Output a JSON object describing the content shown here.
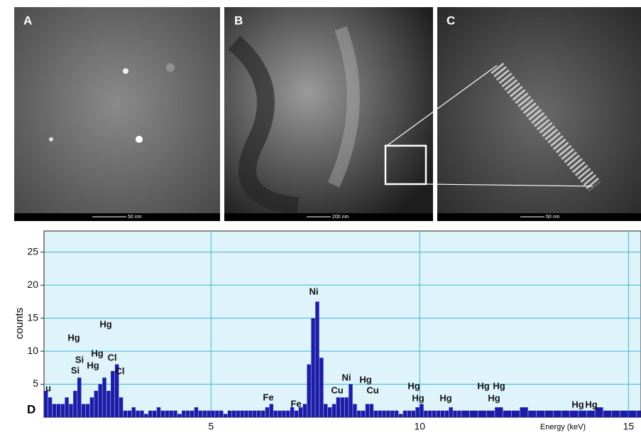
{
  "panels": [
    {
      "label": "A",
      "scale": "50 nm"
    },
    {
      "label": "B",
      "scale": "200 nm"
    },
    {
      "label": "C",
      "scale": "50 nm"
    }
  ],
  "chart_data": {
    "type": "bar",
    "label": "D",
    "ylabel": "counts",
    "xlabel": "Energy (keV)",
    "color": "#1c1ca8",
    "grid": true,
    "xlim": [
      1.0,
      15.3
    ],
    "ylim": [
      0,
      28.2
    ],
    "xticks": [
      5,
      10,
      15
    ],
    "yticks": [
      5,
      10,
      15,
      20,
      25
    ],
    "x": [
      1.0,
      1.1,
      1.2,
      1.3,
      1.4,
      1.5,
      1.6,
      1.7,
      1.8,
      1.9,
      2.0,
      2.1,
      2.2,
      2.3,
      2.4,
      2.5,
      2.6,
      2.7,
      2.8,
      2.9,
      3.0,
      3.1,
      3.2,
      3.3,
      3.4,
      3.5,
      3.6,
      3.7,
      3.8,
      3.9,
      4.0,
      4.1,
      4.2,
      4.3,
      4.4,
      4.5,
      4.6,
      4.7,
      4.8,
      4.9,
      5.0,
      5.1,
      5.2,
      5.3,
      5.4,
      5.5,
      5.6,
      5.7,
      5.8,
      5.9,
      6.0,
      6.1,
      6.2,
      6.3,
      6.4,
      6.5,
      6.6,
      6.7,
      6.8,
      6.9,
      7.0,
      7.1,
      7.2,
      7.3,
      7.4,
      7.5,
      7.6,
      7.7,
      7.8,
      7.9,
      8.0,
      8.1,
      8.2,
      8.3,
      8.4,
      8.5,
      8.6,
      8.7,
      8.8,
      8.9,
      9.0,
      9.1,
      9.2,
      9.3,
      9.4,
      9.5,
      9.6,
      9.7,
      9.8,
      9.9,
      10.0,
      10.1,
      10.2,
      10.3,
      10.4,
      10.5,
      10.6,
      10.7,
      10.8,
      10.9,
      11.0,
      11.2,
      11.4,
      11.6,
      11.8,
      12.0,
      12.2,
      12.4,
      12.6,
      12.8,
      13.0,
      13.2,
      13.4,
      13.6,
      13.8,
      14.0,
      14.2,
      14.4,
      14.6,
      14.8,
      15.0,
      15.2
    ],
    "values": [
      4,
      3,
      2,
      2,
      2,
      3,
      2,
      4,
      6,
      2,
      2,
      3,
      4,
      5,
      6,
      4,
      7,
      8,
      3,
      1,
      1,
      1.5,
      1,
      1,
      0.5,
      1,
      1,
      1.5,
      1,
      1,
      1,
      1,
      0.5,
      1,
      1,
      1,
      1.5,
      1,
      1,
      1,
      1,
      1,
      1,
      0.5,
      1,
      1,
      1,
      1,
      1,
      1,
      1,
      1,
      1,
      1.5,
      2,
      1,
      1,
      1,
      1,
      1.5,
      1,
      1.5,
      2,
      8,
      15,
      17.5,
      9,
      2,
      1.5,
      2,
      3,
      3,
      3,
      5,
      2,
      1,
      1,
      2,
      2,
      1,
      1,
      1,
      1,
      1,
      1,
      0.5,
      1,
      1,
      1,
      1.5,
      2,
      1,
      1,
      1,
      1,
      1,
      1,
      1.5,
      1,
      1,
      1,
      1,
      1,
      1,
      1.5,
      1,
      1,
      1.5,
      1,
      1,
      1,
      1,
      1,
      1,
      1,
      1,
      1.5,
      1,
      1,
      1,
      1,
      1
    ],
    "annotations": [
      "u",
      "Si",
      "Si",
      "Hg",
      "Hg",
      "Hg",
      "Hg",
      "Cl",
      "Cl",
      "Ni",
      "Ni",
      "Fe",
      "Fe",
      "Cu",
      "Cu",
      "Hg",
      "Hg",
      "Hg",
      "Hg",
      "Hg",
      "Hg",
      "Hg",
      "Hg",
      "Hg"
    ]
  }
}
